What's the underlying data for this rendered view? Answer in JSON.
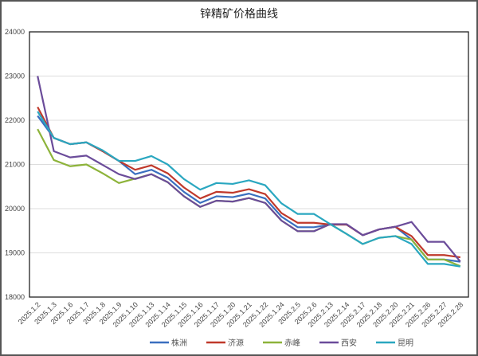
{
  "chart_data": {
    "type": "line",
    "title": "锌精矿价格曲线",
    "xlabel": "",
    "ylabel": "",
    "ylim": [
      18000,
      24000
    ],
    "yticks": [
      18000,
      19000,
      20000,
      21000,
      22000,
      23000,
      24000
    ],
    "grid": true,
    "legend_position": "bottom",
    "categories": [
      "2025.1.2",
      "2025.1.3",
      "2025.1.6",
      "2025.1.7",
      "2025.1.8",
      "2025.1.9",
      "2025.1.10",
      "2025.1.13",
      "2025.1.14",
      "2025.1.15",
      "2025.1.16",
      "2025.1.17",
      "2025.1.20",
      "2025.1.21",
      "2025.1.22",
      "2025.1.24",
      "2025.2.5",
      "2025.2.6",
      "2025.2.13",
      "2025.2.14",
      "2025.2.17",
      "2025.2.18",
      "2025.2.20",
      "2025.2.21",
      "2025.2.26",
      "2025.2.27",
      "2025.2.28"
    ],
    "series": [
      {
        "name": "株洲",
        "color": "#3a6fbf",
        "values": [
          22100,
          21600,
          21460,
          21500,
          21300,
          21080,
          20780,
          20880,
          20700,
          20380,
          20130,
          20280,
          20260,
          20340,
          20230,
          19820,
          19580,
          19580,
          19640,
          19640,
          19400,
          19530,
          19590,
          19300,
          18850,
          18850,
          18800
        ]
      },
      {
        "name": "济源",
        "color": "#c0392b",
        "values": [
          22300,
          21600,
          21460,
          21500,
          21300,
          21080,
          20880,
          20980,
          20800,
          20480,
          20230,
          20380,
          20360,
          20440,
          20330,
          19900,
          19680,
          19680,
          19640,
          19640,
          19400,
          19530,
          19590,
          19380,
          18950,
          18950,
          18900
        ]
      },
      {
        "name": "赤峰",
        "color": "#8db33a",
        "values": [
          21800,
          21100,
          20960,
          21000,
          20800,
          20580,
          20680,
          20780,
          20600,
          20280,
          20040,
          20180,
          20160,
          20240,
          20130,
          19730,
          19490,
          19490,
          19650,
          19430,
          19200,
          19340,
          19380,
          19300,
          18850,
          18850,
          18700
        ]
      },
      {
        "name": "西安",
        "color": "#6b4c9a",
        "values": [
          23000,
          21300,
          21160,
          21200,
          20990,
          20780,
          20670,
          20780,
          20600,
          20280,
          20040,
          20180,
          20160,
          20240,
          20130,
          19730,
          19490,
          19490,
          19650,
          19650,
          19400,
          19530,
          19590,
          19700,
          19250,
          19250,
          18800
        ]
      },
      {
        "name": "昆明",
        "color": "#2aa7c0",
        "values": [
          22200,
          21600,
          21460,
          21500,
          21320,
          21080,
          21080,
          21190,
          21000,
          20670,
          20430,
          20580,
          20560,
          20640,
          20530,
          20120,
          19880,
          19880,
          19650,
          19430,
          19200,
          19340,
          19380,
          19200,
          18750,
          18750,
          18690
        ]
      }
    ]
  }
}
